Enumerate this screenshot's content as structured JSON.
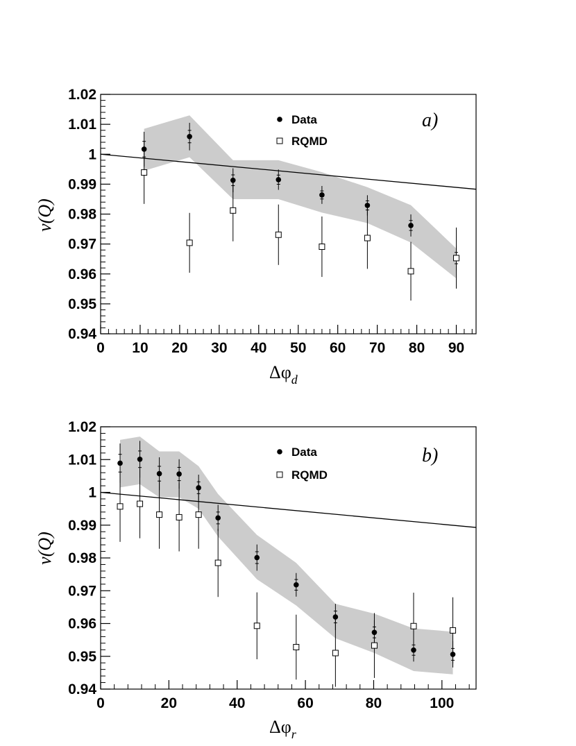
{
  "chart_data": [
    {
      "type": "scatter",
      "panel_label": "a)",
      "xlabel": "Δφ",
      "xlabel_sub": "d",
      "ylabel": "v(Q)",
      "xlim": [
        0,
        95
      ],
      "ylim": [
        0.94,
        1.02
      ],
      "xticks": [
        "0",
        "10",
        "20",
        "30",
        "40",
        "50",
        "60",
        "70",
        "80",
        "90"
      ],
      "yticks": [
        "0.94",
        "0.95",
        "0.96",
        "0.97",
        "0.98",
        "0.99",
        "1",
        "1.01",
        "1.02"
      ],
      "legend": {
        "placement": "top-center",
        "entries": [
          "Data",
          "RQMD"
        ]
      },
      "band": {
        "x": [
          11,
          22.5,
          33.5,
          45,
          56,
          67.5,
          78.5,
          90
        ],
        "upper": [
          1.0085,
          1.013,
          0.998,
          0.998,
          0.994,
          0.989,
          0.983,
          0.9685
        ],
        "lower": [
          0.9945,
          0.999,
          0.985,
          0.985,
          0.9805,
          0.977,
          0.9705,
          0.9585
        ]
      },
      "line": {
        "x": [
          0,
          95
        ],
        "y": [
          1.0,
          0.9883
        ]
      },
      "series": [
        {
          "name": "Data",
          "marker": "filled-circle",
          "x": [
            11,
            22.5,
            33.5,
            45,
            56,
            67.5,
            78.5,
            90
          ],
          "y": [
            1.0017,
            1.0059,
            0.9913,
            0.9915,
            0.9864,
            0.9829,
            0.9762,
            0.9653
          ],
          "err": [
            0.0058,
            0.0046,
            0.004,
            0.0034,
            0.003,
            0.0034,
            0.0037,
            0.0042
          ]
        },
        {
          "name": "RQMD",
          "marker": "open-square",
          "x": [
            11,
            22.5,
            33.5,
            45,
            56,
            67.5,
            78.5,
            90
          ],
          "y": [
            0.9939,
            0.9704,
            0.9812,
            0.9731,
            0.9691,
            0.972,
            0.9609,
            0.9653
          ],
          "err": [
            0.0105,
            0.01,
            0.0103,
            0.0101,
            0.0101,
            0.0103,
            0.0098,
            0.0102
          ]
        }
      ]
    },
    {
      "type": "scatter",
      "panel_label": "b)",
      "xlabel": "Δφ",
      "xlabel_sub": "r",
      "ylabel": "v(Q)",
      "xlim": [
        0,
        110
      ],
      "ylim": [
        0.94,
        1.02
      ],
      "xticks": [
        "0",
        "20",
        "40",
        "60",
        "80",
        "100"
      ],
      "yticks": [
        "0.94",
        "0.95",
        "0.96",
        "0.97",
        "0.98",
        "0.99",
        "1",
        "1.01",
        "1.02"
      ],
      "legend": {
        "placement": "top-center",
        "entries": [
          "Data",
          "RQMD"
        ]
      },
      "band": {
        "x": [
          5.7,
          11.5,
          17.2,
          23,
          28.7,
          34.4,
          45.8,
          57.3,
          68.8,
          80.2,
          91.7,
          103.2
        ],
        "upper": [
          1.016,
          1.017,
          1.0125,
          1.0125,
          1.008,
          0.9995,
          0.987,
          0.9785,
          0.966,
          0.963,
          0.9585,
          0.9575
        ],
        "lower": [
          1.0015,
          1.0025,
          0.9985,
          0.9985,
          0.995,
          0.9865,
          0.9735,
          0.9655,
          0.9555,
          0.951,
          0.9455,
          0.9445
        ]
      },
      "line": {
        "x": [
          0,
          110
        ],
        "y": [
          1.0,
          0.9893
        ]
      },
      "series": [
        {
          "name": "Data",
          "marker": "filled-circle",
          "x": [
            5.7,
            11.5,
            17.2,
            23,
            28.7,
            34.4,
            45.8,
            57.3,
            68.8,
            80.2,
            91.7,
            103.2
          ],
          "y": [
            1.0089,
            1.0101,
            1.0057,
            1.0056,
            1.0014,
            0.9922,
            0.9801,
            0.9718,
            0.962,
            0.9573,
            0.9519,
            0.9506
          ],
          "err": [
            0.006,
            0.0056,
            0.005,
            0.0045,
            0.004,
            0.004,
            0.004,
            0.0036,
            0.004,
            0.0037,
            0.0035,
            0.004
          ]
        },
        {
          "name": "RQMD",
          "marker": "open-square",
          "x": [
            5.7,
            11.5,
            17.2,
            23,
            28.7,
            34.4,
            45.8,
            57.3,
            68.8,
            80.2,
            91.7,
            103.2
          ],
          "y": [
            0.9957,
            0.9965,
            0.9932,
            0.9924,
            0.9932,
            0.9785,
            0.9593,
            0.9528,
            0.951,
            0.9533,
            0.9592,
            0.9579
          ],
          "err": [
            0.0108,
            0.0105,
            0.0104,
            0.0104,
            0.0104,
            0.0104,
            0.0102,
            0.0099,
            0.0103,
            0.0099,
            0.0102,
            0.0101
          ]
        }
      ]
    }
  ]
}
